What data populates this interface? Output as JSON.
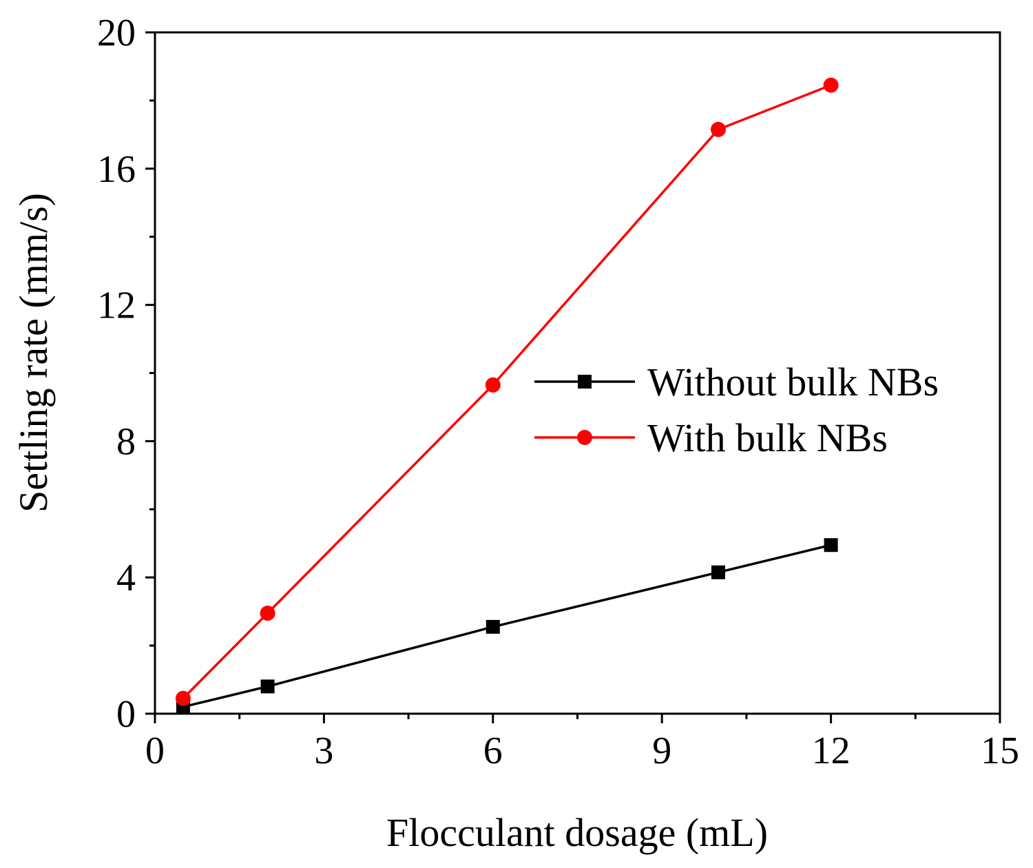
{
  "chart_data": {
    "type": "line",
    "title": "",
    "xlabel": "Flocculant dosage (mL)",
    "ylabel": "Settling rate (mm/s)",
    "xlim": [
      0,
      15
    ],
    "ylim": [
      0,
      20
    ],
    "xticks": [
      0,
      3,
      6,
      9,
      12,
      15
    ],
    "yticks": [
      0,
      4,
      8,
      12,
      16,
      20
    ],
    "grid": false,
    "legend_position": "center-right",
    "series": [
      {
        "name": "Without bulk NBs",
        "color": "#000000",
        "marker": "square",
        "x": [
          0.5,
          2,
          6,
          10,
          12
        ],
        "y": [
          0.2,
          0.8,
          2.55,
          4.15,
          4.95
        ]
      },
      {
        "name": "With bulk NBs",
        "color": "#ff0000",
        "marker": "circle",
        "x": [
          0.5,
          2,
          6,
          10,
          12
        ],
        "y": [
          0.45,
          2.95,
          9.65,
          17.15,
          18.45
        ]
      }
    ]
  }
}
